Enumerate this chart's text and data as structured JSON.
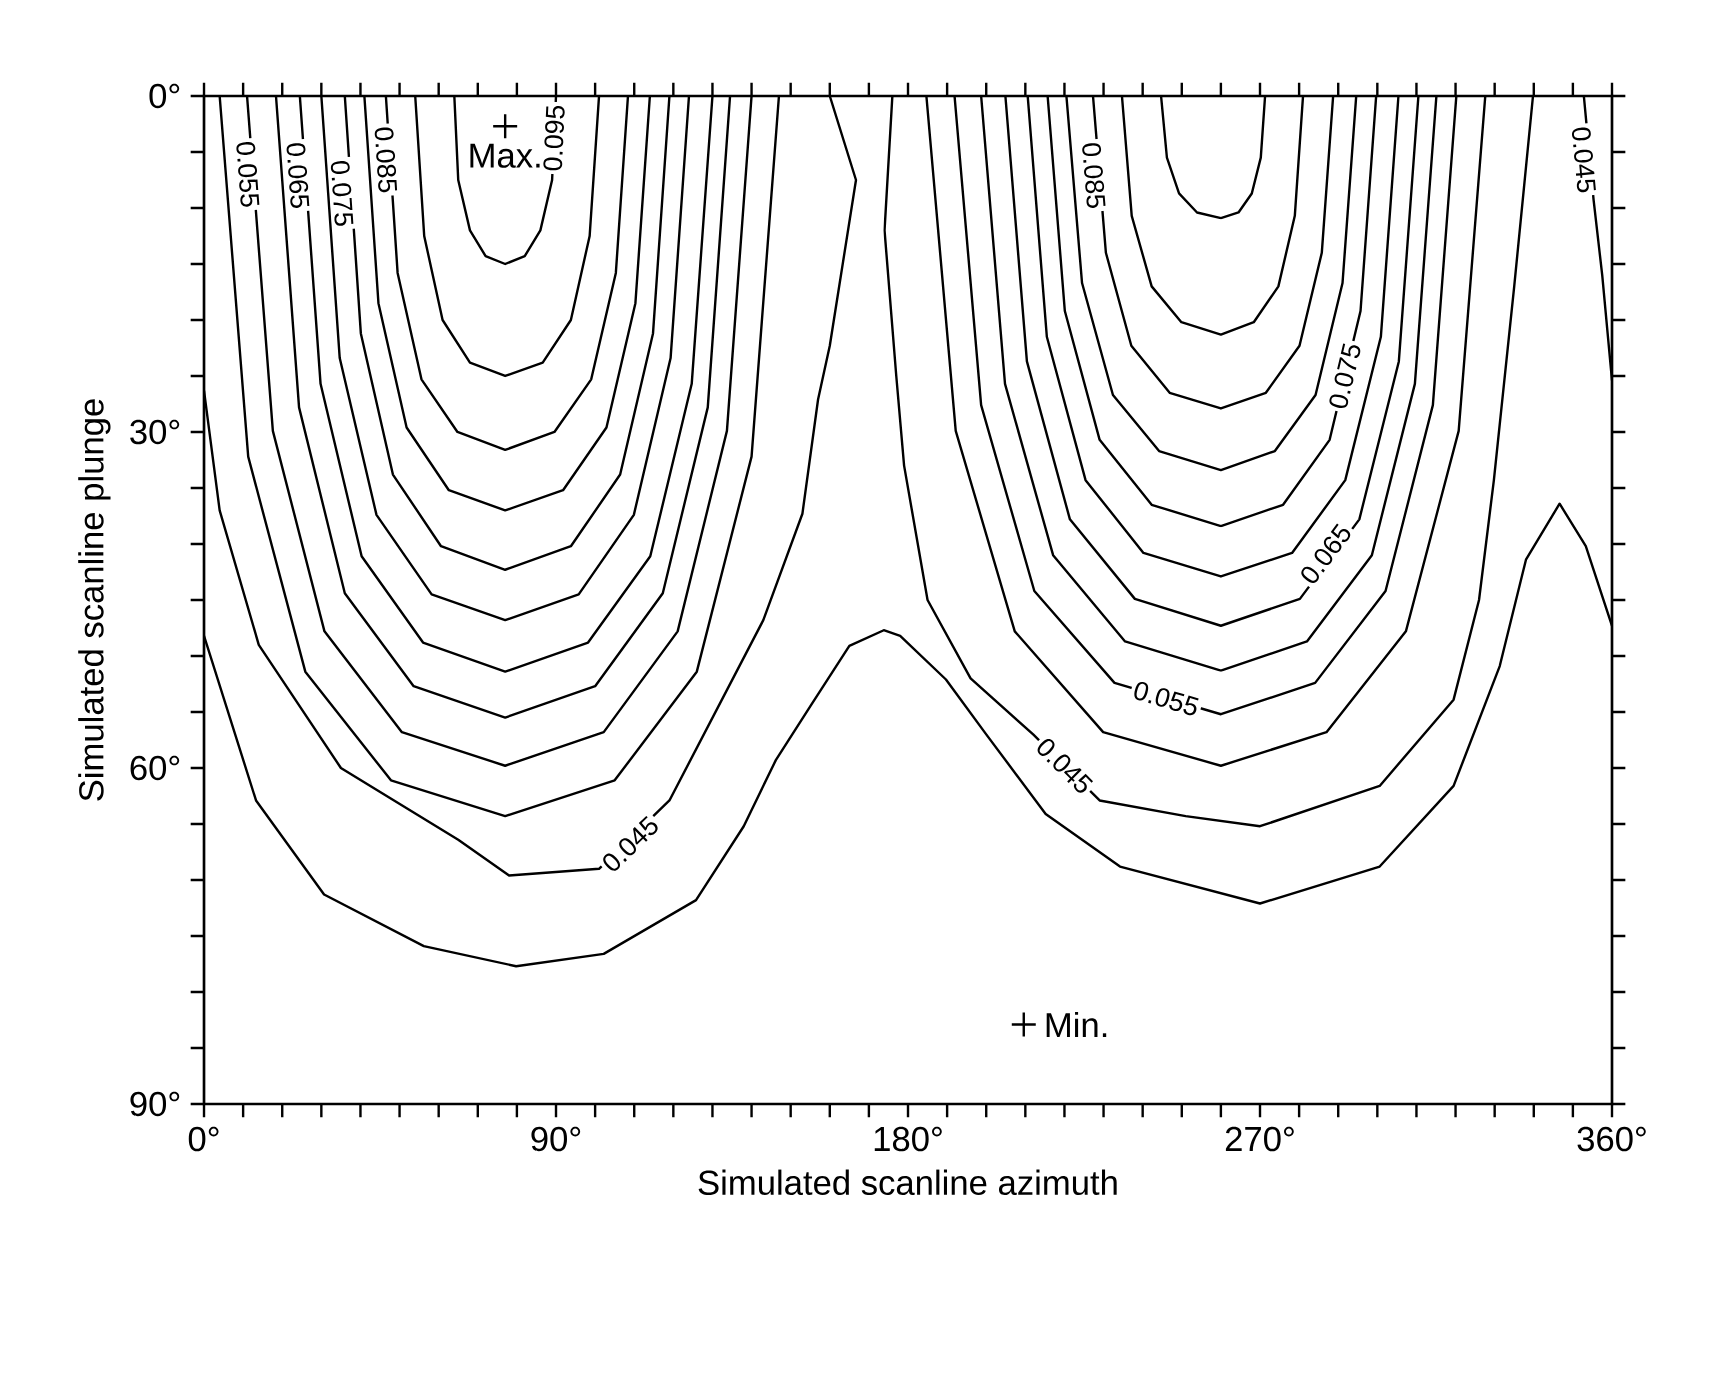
{
  "chart_data": {
    "type": "line",
    "xlabel": "Simulated scanline azimuth",
    "ylabel": "Simulated scanline plunge",
    "xlim": [
      0,
      360
    ],
    "ylim": [
      90,
      0
    ],
    "xticks": [
      {
        "value": 0,
        "label": "0°"
      },
      {
        "value": 10,
        "label": null
      },
      {
        "value": 20,
        "label": null
      },
      {
        "value": 30,
        "label": null
      },
      {
        "value": 40,
        "label": null
      },
      {
        "value": 50,
        "label": null
      },
      {
        "value": 60,
        "label": null
      },
      {
        "value": 70,
        "label": null
      },
      {
        "value": 80,
        "label": null
      },
      {
        "value": 90,
        "label": "90°"
      },
      {
        "value": 100,
        "label": null
      },
      {
        "value": 110,
        "label": null
      },
      {
        "value": 120,
        "label": null
      },
      {
        "value": 130,
        "label": null
      },
      {
        "value": 140,
        "label": null
      },
      {
        "value": 150,
        "label": null
      },
      {
        "value": 160,
        "label": null
      },
      {
        "value": 170,
        "label": null
      },
      {
        "value": 180,
        "label": "180°"
      },
      {
        "value": 190,
        "label": null
      },
      {
        "value": 200,
        "label": null
      },
      {
        "value": 210,
        "label": null
      },
      {
        "value": 220,
        "label": null
      },
      {
        "value": 230,
        "label": null
      },
      {
        "value": 240,
        "label": null
      },
      {
        "value": 250,
        "label": null
      },
      {
        "value": 260,
        "label": null
      },
      {
        "value": 270,
        "label": "270°"
      },
      {
        "value": 280,
        "label": null
      },
      {
        "value": 290,
        "label": null
      },
      {
        "value": 300,
        "label": null
      },
      {
        "value": 310,
        "label": null
      },
      {
        "value": 320,
        "label": null
      },
      {
        "value": 330,
        "label": null
      },
      {
        "value": 340,
        "label": null
      },
      {
        "value": 350,
        "label": null
      },
      {
        "value": 360,
        "label": "360°"
      }
    ],
    "yticks": [
      {
        "value": 0,
        "label": "0°"
      },
      {
        "value": 5,
        "label": null
      },
      {
        "value": 10,
        "label": null
      },
      {
        "value": 15,
        "label": null
      },
      {
        "value": 20,
        "label": null
      },
      {
        "value": 25,
        "label": null
      },
      {
        "value": 30,
        "label": "30°"
      },
      {
        "value": 35,
        "label": null
      },
      {
        "value": 40,
        "label": null
      },
      {
        "value": 45,
        "label": null
      },
      {
        "value": 50,
        "label": null
      },
      {
        "value": 55,
        "label": null
      },
      {
        "value": 60,
        "label": "60°"
      },
      {
        "value": 65,
        "label": null
      },
      {
        "value": 70,
        "label": null
      },
      {
        "value": 75,
        "label": null
      },
      {
        "value": 80,
        "label": null
      },
      {
        "value": 85,
        "label": null
      },
      {
        "value": 90,
        "label": "90°"
      }
    ],
    "series": [
      {
        "color": "#000000",
        "x": [
          64,
          65,
          68,
          72,
          77,
          82,
          86,
          89,
          90
        ],
        "values": [
          0,
          7.5,
          12,
          14.3,
          15,
          14.3,
          12,
          7.5,
          0
        ]
      },
      {
        "color": "#000000",
        "x": [
          54,
          56.3,
          61,
          68,
          77,
          86.6,
          93.8,
          98.6,
          101
        ],
        "values": [
          0,
          12.5,
          20,
          23.8,
          25,
          23.8,
          20,
          12.5,
          0
        ]
      },
      {
        "color": "#000000",
        "x": [
          46.5,
          49.5,
          55.6,
          64.8,
          77,
          89.6,
          99,
          105.3,
          108.4
        ],
        "values": [
          0,
          15.8,
          25.3,
          30,
          31.6,
          30,
          25.3,
          15.8,
          0
        ]
      },
      {
        "color": "#000000",
        "x": [
          41,
          44.6,
          51.8,
          62.6,
          77,
          91.8,
          102.9,
          110.3,
          114
        ],
        "values": [
          0,
          18.5,
          29.6,
          35.2,
          37,
          35.2,
          29.6,
          18.5,
          0
        ]
      },
      {
        "color": "#000000",
        "x": [
          36,
          40.1,
          48.3,
          60.6,
          77,
          93.8,
          106.4,
          114.8,
          119
        ],
        "values": [
          0,
          21.2,
          33.8,
          40.2,
          42.3,
          40.2,
          33.8,
          21.2,
          0
        ]
      },
      {
        "color": "#000000",
        "x": [
          30,
          34.7,
          44.1,
          58.2,
          77,
          95.8,
          109.9,
          119.3,
          124
        ],
        "values": [
          0,
          23.4,
          37.4,
          44.5,
          46.8,
          44.5,
          37.4,
          23.4,
          0
        ]
      },
      {
        "color": "#000000",
        "x": [
          24.5,
          29.8,
          40.3,
          56,
          77,
          98.2,
          114.1,
          124.7,
          130
        ],
        "values": [
          0,
          25.7,
          41.1,
          48.8,
          51.4,
          48.8,
          41.1,
          25.7,
          0
        ]
      },
      {
        "color": "#000000",
        "x": [
          18.4,
          24.3,
          36,
          53.6,
          77,
          100,
          117.3,
          128.8,
          134.5
        ],
        "values": [
          0,
          27.8,
          44.4,
          52.7,
          55.5,
          52.7,
          44.4,
          27.8,
          0
        ]
      },
      {
        "color": "#000000",
        "x": [
          11,
          17.6,
          30.8,
          50.6,
          77,
          102.2,
          121.1,
          133.7,
          140
        ],
        "values": [
          0,
          29.9,
          47.8,
          56.8,
          59.8,
          56.8,
          47.8,
          29.9,
          0
        ]
      },
      {
        "color": "#000000",
        "x": [
          4,
          11.3,
          25.9,
          47.8,
          77,
          105,
          126,
          140,
          147
        ],
        "values": [
          0,
          32.2,
          51.4,
          61.1,
          64.3,
          61.1,
          51.4,
          32.2,
          0
        ]
      },
      {
        "color": "#000000",
        "x": [
          0,
          4,
          14,
          35,
          65,
          78,
          101,
          119,
          143,
          153,
          157,
          160,
          166.7,
          160
        ],
        "values": [
          26.3,
          37,
          49,
          60,
          66.4,
          69.6,
          69,
          62.9,
          46.8,
          37.3,
          27.1,
          22.3,
          7.5,
          0
        ]
      },
      {
        "color": "#000000",
        "x": [
          0,
          13.3,
          30.7,
          56.2,
          79.8,
          102.2,
          125.8,
          138,
          146.2,
          155,
          165,
          173.8,
          178,
          189.7,
          200,
          215.2,
          234.2,
          270,
          300.6,
          319.5,
          331.3,
          338,
          346.6,
          353.3,
          360
        ],
        "values": [
          48.2,
          62.9,
          71.3,
          75.9,
          77.7,
          76.6,
          71.8,
          65.2,
          59.3,
          54.5,
          49.1,
          47.7,
          48.2,
          52.1,
          57,
          64.1,
          68.8,
          72.1,
          68.8,
          61.6,
          50.9,
          41.4,
          36.4,
          40.2,
          47.3
        ]
      },
      {
        "color": "#000000",
        "x": [
          244.7,
          246.2,
          249.3,
          253.9,
          260,
          264.5,
          267.9,
          270.2,
          271.3
        ],
        "values": [
          0,
          5.5,
          8.7,
          10.4,
          10.9,
          10.4,
          8.7,
          5.5,
          0
        ]
      },
      {
        "color": "#000000",
        "x": [
          234.7,
          237.2,
          242.3,
          249.9,
          260,
          268.4,
          274.7,
          278.9,
          281
        ],
        "values": [
          0,
          10.7,
          17,
          20.2,
          21.3,
          20.2,
          17,
          10.7,
          0
        ]
      },
      {
        "color": "#000000",
        "x": [
          227.3,
          230.6,
          237.1,
          246.9,
          260,
          271.5,
          280.1,
          285.8,
          288.7
        ],
        "values": [
          0,
          14,
          22.3,
          26.5,
          27.9,
          26.5,
          22.3,
          14,
          0
        ]
      },
      {
        "color": "#000000",
        "x": [
          220.5,
          224.5,
          232.4,
          244.2,
          260,
          273.8,
          284.2,
          291.1,
          294.6
        ],
        "values": [
          0,
          16.7,
          26.7,
          31.7,
          33.4,
          31.7,
          26.7,
          16.7,
          0
        ]
      },
      {
        "color": "#000000",
        "x": [
          215.7,
          220.1,
          229,
          242.3,
          260,
          275.9,
          287.8,
          295.7,
          299.7
        ],
        "values": [
          0,
          19.2,
          30.7,
          36.5,
          38.4,
          36.5,
          30.7,
          19.2,
          0
        ]
      },
      {
        "color": "#000000",
        "x": [
          210.6,
          215.5,
          225.4,
          240.2,
          260,
          278.2,
          291.8,
          300.9,
          305.4
        ],
        "values": [
          0,
          21.5,
          34.3,
          40.8,
          42.9,
          40.8,
          34.3,
          21.5,
          0
        ]
      },
      {
        "color": "#000000",
        "x": [
          204.9,
          210.4,
          221.4,
          238,
          260,
          280.2,
          295.4,
          305.5,
          310.5
        ],
        "values": [
          0,
          23.7,
          37.8,
          44.9,
          47.3,
          44.9,
          37.8,
          23.7,
          0
        ]
      },
      {
        "color": "#000000",
        "x": [
          198.7,
          204.8,
          217.1,
          235.5,
          260,
          282,
          298.6,
          309.6,
          315.1
        ],
        "values": [
          0,
          25.7,
          41,
          48.7,
          51.3,
          48.7,
          41,
          25.7,
          0
        ]
      },
      {
        "color": "#000000",
        "x": [
          191.9,
          198.7,
          212.3,
          232.8,
          260,
          284.1,
          302.1,
          314.2,
          320.2
        ],
        "values": [
          0,
          27.6,
          44.2,
          52.4,
          55.2,
          52.4,
          44.2,
          27.6,
          0
        ]
      },
      {
        "color": "#000000",
        "x": [
          184.7,
          192.2,
          207.3,
          229.9,
          260,
          287,
          307.3,
          320.8,
          327.6
        ],
        "values": [
          0,
          29.9,
          47.8,
          56.8,
          59.8,
          56.8,
          47.8,
          29.9,
          0
        ]
      },
      {
        "color": "#000000",
        "x": [
          176,
          174,
          177,
          179,
          185,
          196,
          212,
          229,
          251,
          270,
          300.6,
          319.5,
          326,
          329.8,
          335,
          339.8
        ],
        "values": [
          0,
          12,
          25,
          33,
          45,
          52,
          57,
          62.9,
          64.3,
          65.2,
          61.6,
          53.9,
          45,
          34.3,
          17,
          0
        ]
      },
      {
        "color": "#000000",
        "x": [
          352.8,
          355.3,
          357.5,
          360
        ],
        "values": [
          0,
          9.3,
          16,
          25.4
        ]
      },
      {
        "type": "scatter",
        "name": "Max.",
        "marker": "cross",
        "color": "#000000",
        "x": [
          77
        ],
        "values": [
          2.7
        ]
      },
      {
        "type": "scatter",
        "name": "Min.",
        "marker": "cross",
        "color": "#000000",
        "x": [
          209.6
        ],
        "values": [
          82.9
        ]
      }
    ],
    "annotations": [
      {
        "text": "0.055",
        "x": 11.2,
        "y": 7
      },
      {
        "text": "0.065",
        "x": 24,
        "y": 7.1
      },
      {
        "text": "0.075",
        "x": 35.3,
        "y": 8.7
      },
      {
        "text": "0.085",
        "x": 46.5,
        "y": 5.7
      },
      {
        "text": "0.095",
        "x": 89.5,
        "y": 3.75
      },
      {
        "text": "0.045",
        "x": 109,
        "y": 66.8
      },
      {
        "text": "0.085",
        "x": 227.5,
        "y": 7.1
      },
      {
        "text": "0.075",
        "x": 291.7,
        "y": 25
      },
      {
        "text": "0.065",
        "x": 286.8,
        "y": 40.9
      },
      {
        "text": "0.055",
        "x": 246,
        "y": 53.8
      },
      {
        "text": "0.045",
        "x": 220,
        "y": 59.8
      },
      {
        "text": "0.045",
        "x": 352.8,
        "y": 5.7
      }
    ]
  }
}
